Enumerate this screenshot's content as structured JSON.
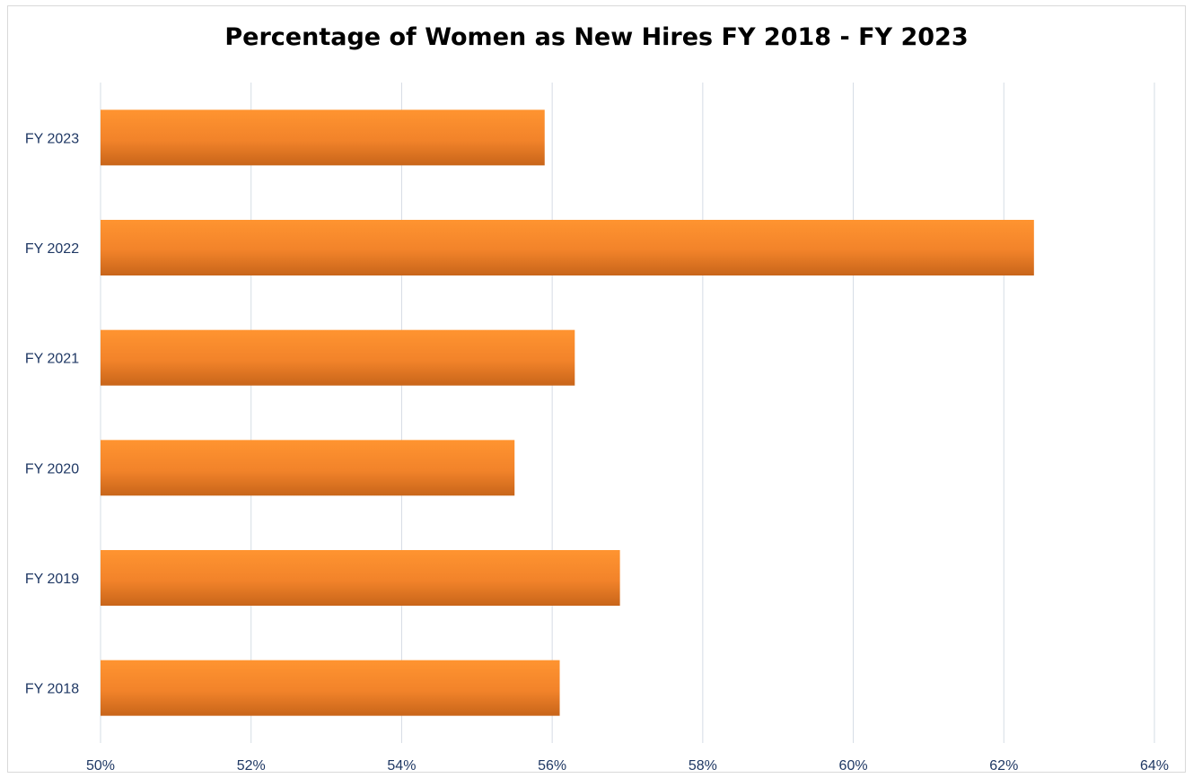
{
  "chart_data": {
    "type": "bar",
    "orientation": "horizontal",
    "title": "Percentage of Women as New Hires FY 2018 - FY 2023",
    "categories": [
      "FY 2023",
      "FY 2022",
      "FY 2021",
      "FY 2020",
      "FY 2019",
      "FY 2018"
    ],
    "values": [
      55.9,
      62.4,
      56.3,
      55.5,
      56.9,
      56.1
    ],
    "value_unit": "%",
    "xlim": [
      50,
      64
    ],
    "x_ticks": [
      "50%",
      "52%",
      "54%",
      "56%",
      "58%",
      "60%",
      "62%",
      "64%"
    ],
    "xlabel": "",
    "ylabel": "",
    "grid": "vertical",
    "legend": "none",
    "colors": {
      "bar_top": "#ff9430",
      "bar_bottom": "#c8651a",
      "gridline": "#d6dce5",
      "tick_text": "#1f3864"
    }
  }
}
